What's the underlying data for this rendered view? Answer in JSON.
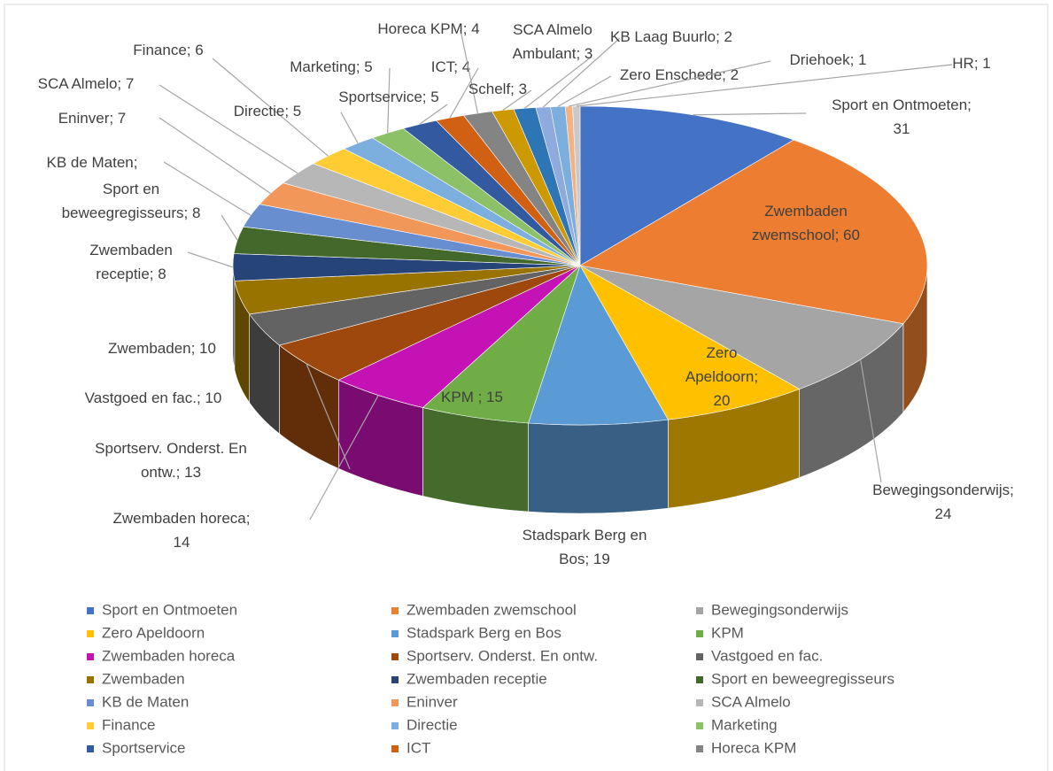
{
  "chart_data": {
    "type": "pie",
    "categories": [
      "Sport en Ontmoeten",
      "Zwembaden zwemschool",
      "Bewegingsonderwijs",
      "Zero Apeldoorn",
      "Stadspark Berg en Bos",
      "KPM",
      "Zwembaden horeca",
      "Sportserv. Onderst. En ontw.",
      "Vastgoed en fac.",
      "Zwembaden",
      "Zwembaden receptie",
      "Sport en beweegregisseurs",
      "KB de Maten",
      "Eninver",
      "SCA Almelo",
      "Finance",
      "Directie",
      "Marketing",
      "Sportservice",
      "ICT",
      "Horeca KPM",
      "Schelf",
      "SCA Almelo Ambulant",
      "KB Laag Buurlo",
      "Zero Enschede",
      "Driehoek",
      "HR"
    ],
    "values": [
      31,
      60,
      24,
      20,
      19,
      15,
      14,
      13,
      10,
      10,
      8,
      8,
      7,
      7,
      7,
      6,
      5,
      5,
      5,
      4,
      4,
      3,
      3,
      2,
      2,
      1,
      1
    ],
    "value_labels": [
      "Sport en Ontmoeten; 31",
      "Zwembaden zwemschool; 60",
      "Bewegingsonderwijs; 24",
      "Zero Apeldoorn; 20",
      "Stadspark Berg en Bos; 19",
      "KPM ; 15",
      "Zwembaden horeca; 14",
      "Sportserv. Onderst. En ontw.; 13",
      "Vastgoed en fac.; 10",
      "Zwembaden; 10",
      "Zwembaden receptie; 8",
      "Sport en beweegregisseurs; 8",
      "KB de Maten; 7",
      "Eninver; 7",
      "SCA Almelo; 7",
      "Finance; 6",
      "Directie; 5",
      "Marketing; 5",
      "Sportservice; 5",
      "ICT; 4",
      "Horeca KPM; 4",
      "Schelf; 3",
      "SCA Almelo Ambulant; 3",
      "KB Laag Buurlo; 2",
      "Zero Enschede; 2",
      "Driehoek; 1",
      "HR; 1"
    ],
    "colors": [
      "#4472c4",
      "#ed7d31",
      "#a5a5a5",
      "#ffc000",
      "#5b9bd5",
      "#70ad47",
      "#c412b4",
      "#9e480e",
      "#636363",
      "#997300",
      "#264478",
      "#43682b",
      "#698ed0",
      "#f1975a",
      "#b7b7b7",
      "#ffcd33",
      "#7cafdd",
      "#8cc168",
      "#335aa1",
      "#d26012",
      "#848484",
      "#cc9a00",
      "#2e75b6",
      "#8faadc",
      "#7cafdd",
      "#f4b183",
      "#c9c9c9"
    ],
    "legend_count": 21
  }
}
